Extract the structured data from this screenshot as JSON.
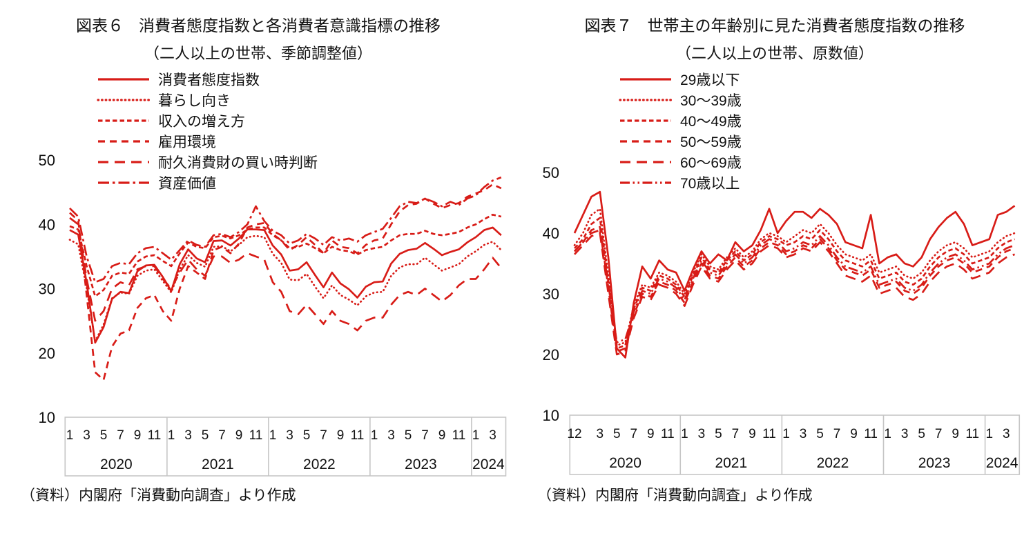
{
  "colors": {
    "line": "#d81c17",
    "axis_box": "#c6c6c6",
    "text": "#111111"
  },
  "chart_data": [
    {
      "type": "line",
      "fig_no": "図表６",
      "title": "消費者態度指数と各消費者意識指標の推移",
      "subtitle": "（二人以上の世帯、季節調整値）",
      "source": "（資料）内閣府「消費動向調査」より作成",
      "ylim": [
        10,
        50
      ],
      "y_ticks": [
        50,
        40,
        30,
        20,
        10
      ],
      "grid": false,
      "legend_position": "top-left-inside",
      "x_years": [
        {
          "label": "2020",
          "first_month": 1,
          "n_months": 12,
          "ticks": [
            "1",
            "3",
            "5",
            "7",
            "9",
            "11"
          ]
        },
        {
          "label": "2021",
          "first_month": 1,
          "n_months": 12,
          "ticks": [
            "1",
            "3",
            "5",
            "7",
            "9",
            "11"
          ]
        },
        {
          "label": "2022",
          "first_month": 1,
          "n_months": 12,
          "ticks": [
            "1",
            "3",
            "5",
            "7",
            "9",
            "11"
          ]
        },
        {
          "label": "2023",
          "first_month": 1,
          "n_months": 12,
          "ticks": [
            "1",
            "3",
            "5",
            "7",
            "9",
            "11"
          ]
        },
        {
          "label": "2024",
          "first_month": 1,
          "n_months": 4,
          "ticks": [
            "1",
            "3"
          ]
        }
      ],
      "series": [
        {
          "name": "消費者態度指数",
          "style": "solid",
          "values": [
            39.1,
            38.4,
            30.9,
            21.6,
            24.0,
            28.4,
            29.5,
            29.3,
            32.7,
            33.6,
            33.7,
            31.8,
            29.6,
            33.8,
            36.1,
            34.7,
            34.1,
            37.4,
            37.5,
            36.7,
            37.8,
            39.2,
            39.2,
            39.1,
            36.7,
            35.3,
            32.8,
            33.0,
            34.1,
            32.1,
            30.2,
            32.5,
            30.8,
            29.9,
            28.6,
            30.3,
            31.0,
            31.1,
            33.9,
            35.4,
            36.0,
            36.2,
            37.1,
            36.2,
            35.2,
            35.7,
            36.1,
            37.2,
            38.0,
            39.1,
            39.5,
            38.3
          ]
        },
        {
          "name": "暮らし向き",
          "style": "dotted",
          "values": [
            37.6,
            36.9,
            30.1,
            21.8,
            24.4,
            28.5,
            29.4,
            29.2,
            32.0,
            32.8,
            33.0,
            31.2,
            29.4,
            33.0,
            35.2,
            34.0,
            33.4,
            36.5,
            36.6,
            35.8,
            36.8,
            38.0,
            38.2,
            38.0,
            35.4,
            34.0,
            31.4,
            31.3,
            32.3,
            30.3,
            28.5,
            30.5,
            29.0,
            28.3,
            27.4,
            28.8,
            29.4,
            29.5,
            32.0,
            33.3,
            33.8,
            33.8,
            34.8,
            33.8,
            32.8,
            33.3,
            33.8,
            35.0,
            35.8,
            36.8,
            37.3,
            36.0
          ]
        },
        {
          "name": "収入の増え方",
          "style": "dash-fine",
          "values": [
            39.7,
            39.2,
            33.5,
            28.8,
            29.8,
            32.0,
            32.5,
            32.3,
            34.2,
            35.0,
            35.2,
            34.3,
            33.5,
            35.5,
            37.2,
            36.5,
            36.3,
            38.0,
            38.2,
            37.8,
            38.3,
            39.2,
            39.5,
            39.5,
            38.3,
            37.5,
            36.3,
            36.5,
            37.0,
            36.3,
            35.5,
            36.5,
            36.0,
            35.8,
            35.3,
            36.0,
            36.3,
            36.5,
            37.5,
            38.3,
            38.5,
            38.5,
            39.0,
            38.5,
            38.3,
            38.5,
            38.8,
            39.5,
            40.0,
            40.8,
            41.5,
            41.2
          ]
        },
        {
          "name": "雇用環境",
          "style": "dash",
          "values": [
            41.8,
            40.6,
            29.0,
            17.0,
            15.8,
            21.0,
            23.0,
            23.5,
            27.0,
            28.5,
            29.0,
            26.5,
            25.0,
            30.0,
            33.5,
            32.5,
            31.5,
            36.0,
            36.5,
            35.5,
            37.0,
            39.5,
            40.0,
            40.2,
            38.5,
            37.5,
            36.0,
            36.8,
            38.0,
            36.8,
            35.5,
            37.5,
            36.5,
            36.3,
            35.5,
            36.8,
            37.5,
            37.8,
            40.0,
            42.0,
            43.0,
            43.2,
            44.0,
            43.2,
            42.5,
            43.0,
            43.3,
            44.3,
            44.8,
            45.3,
            46.2,
            45.6
          ]
        },
        {
          "name": "耐久消費財の買い時判断",
          "style": "dash-long",
          "values": [
            41.0,
            40.0,
            31.5,
            25.0,
            26.5,
            30.0,
            31.0,
            30.5,
            33.0,
            33.5,
            33.5,
            31.5,
            30.0,
            32.5,
            34.5,
            33.0,
            32.0,
            35.0,
            35.0,
            34.0,
            34.5,
            35.5,
            35.0,
            34.5,
            31.0,
            29.5,
            26.5,
            26.0,
            27.5,
            26.0,
            24.5,
            26.5,
            25.0,
            24.5,
            23.5,
            25.0,
            25.5,
            25.5,
            27.5,
            29.0,
            29.5,
            29.0,
            30.0,
            29.0,
            28.0,
            29.0,
            30.5,
            31.5,
            31.5,
            33.0,
            34.8,
            33.2
          ]
        },
        {
          "name": "資産価値",
          "style": "dash-dot",
          "values": [
            42.5,
            41.2,
            35.0,
            31.0,
            31.5,
            33.5,
            34.0,
            33.8,
            35.5,
            36.3,
            36.5,
            35.5,
            34.5,
            36.0,
            37.5,
            36.8,
            36.5,
            38.3,
            38.5,
            38.0,
            38.8,
            40.0,
            42.8,
            40.5,
            39.0,
            38.3,
            37.0,
            37.5,
            38.5,
            37.8,
            36.8,
            38.0,
            37.5,
            37.8,
            37.3,
            38.3,
            38.8,
            39.3,
            41.0,
            42.8,
            43.5,
            43.3,
            44.0,
            43.5,
            42.8,
            43.5,
            43.0,
            44.0,
            44.5,
            45.8,
            46.8,
            47.3
          ]
        }
      ]
    },
    {
      "type": "line",
      "fig_no": "図表７",
      "title": "世帯主の年齢別に見た消費者態度指数の推移",
      "subtitle": "（二人以上の世帯、原数値）",
      "source": "（資料）内閣府「消費動向調査」より作成",
      "ylim": [
        10,
        50
      ],
      "y_ticks": [
        50,
        40,
        30,
        20,
        10
      ],
      "grid": false,
      "legend_position": "top-left-inside",
      "x_years": [
        {
          "label": "2020",
          "first_month": 12,
          "n_months": 13,
          "ticks": [
            "12",
            "3",
            "5",
            "7",
            "9",
            "11"
          ]
        },
        {
          "label": "2021",
          "first_month": 1,
          "n_months": 12,
          "ticks": [
            "1",
            "3",
            "5",
            "7",
            "9",
            "11"
          ]
        },
        {
          "label": "2022",
          "first_month": 1,
          "n_months": 12,
          "ticks": [
            "1",
            "3",
            "5",
            "7",
            "9",
            "11"
          ]
        },
        {
          "label": "2023",
          "first_month": 1,
          "n_months": 12,
          "ticks": [
            "1",
            "3",
            "5",
            "7",
            "9",
            "11"
          ]
        },
        {
          "label": "2024",
          "first_month": 1,
          "n_months": 4,
          "ticks": [
            "1",
            "3"
          ]
        }
      ],
      "series": [
        {
          "name": "29歳以下",
          "style": "solid",
          "values": [
            40.0,
            43.0,
            46.0,
            46.8,
            36.0,
            21.0,
            19.5,
            28.5,
            34.5,
            32.5,
            35.5,
            34.0,
            33.5,
            30.5,
            34.0,
            37.0,
            35.0,
            36.5,
            35.5,
            38.5,
            37.0,
            38.0,
            40.5,
            44.0,
            40.0,
            42.0,
            43.5,
            43.5,
            42.5,
            44.0,
            43.0,
            41.5,
            38.5,
            38.0,
            37.5,
            43.0,
            35.0,
            36.0,
            36.5,
            35.0,
            34.5,
            36.0,
            39.0,
            41.0,
            42.5,
            43.5,
            41.5,
            38.0,
            38.5,
            39.0,
            43.0,
            43.5,
            44.5
          ]
        },
        {
          "name": "30～39歳",
          "style": "dotted",
          "values": [
            38.0,
            40.0,
            43.0,
            44.0,
            33.0,
            21.5,
            22.0,
            28.0,
            31.5,
            31.0,
            33.5,
            33.0,
            32.0,
            30.0,
            33.5,
            36.5,
            34.5,
            34.0,
            36.0,
            37.5,
            36.0,
            37.0,
            39.0,
            40.0,
            39.5,
            38.5,
            39.5,
            40.5,
            40.0,
            41.5,
            40.0,
            38.0,
            36.5,
            36.0,
            35.5,
            36.5,
            33.5,
            34.0,
            34.5,
            33.0,
            32.5,
            33.5,
            35.5,
            37.0,
            38.0,
            38.5,
            37.5,
            36.0,
            36.5,
            37.0,
            38.5,
            39.5,
            40.0
          ]
        },
        {
          "name": "40～49歳",
          "style": "dash-fine",
          "values": [
            37.5,
            39.0,
            41.5,
            42.5,
            32.0,
            21.0,
            21.5,
            27.5,
            31.0,
            30.5,
            33.0,
            32.5,
            31.5,
            29.5,
            33.0,
            36.0,
            34.0,
            33.5,
            35.5,
            37.0,
            35.5,
            36.5,
            38.5,
            39.5,
            39.0,
            38.0,
            38.5,
            39.5,
            39.0,
            40.5,
            39.0,
            37.0,
            35.5,
            35.0,
            34.5,
            35.5,
            32.5,
            33.0,
            33.5,
            32.0,
            31.5,
            32.5,
            34.5,
            36.0,
            37.0,
            37.5,
            36.5,
            35.0,
            35.5,
            36.0,
            37.5,
            38.5,
            39.0
          ]
        },
        {
          "name": "50～59歳",
          "style": "dash",
          "values": [
            37.0,
            38.5,
            40.5,
            41.0,
            31.0,
            20.5,
            21.0,
            26.5,
            30.0,
            29.5,
            32.0,
            31.5,
            30.5,
            28.5,
            32.0,
            35.0,
            33.0,
            32.5,
            34.5,
            36.0,
            34.5,
            35.5,
            37.5,
            38.5,
            38.0,
            36.5,
            37.0,
            38.0,
            37.5,
            39.0,
            37.5,
            35.5,
            34.0,
            33.5,
            33.0,
            34.0,
            31.0,
            31.5,
            32.0,
            30.5,
            30.0,
            31.0,
            33.0,
            34.5,
            35.5,
            36.0,
            35.0,
            33.5,
            34.0,
            34.5,
            36.0,
            37.0,
            37.5
          ]
        },
        {
          "name": "60～69歳",
          "style": "dash-long",
          "values": [
            36.5,
            38.0,
            39.5,
            40.0,
            30.0,
            20.0,
            20.5,
            26.0,
            29.5,
            29.0,
            31.5,
            31.0,
            30.0,
            28.0,
            31.5,
            34.5,
            32.5,
            32.0,
            34.0,
            35.5,
            34.0,
            35.0,
            37.0,
            38.0,
            37.5,
            36.0,
            36.5,
            37.5,
            37.0,
            38.5,
            37.0,
            35.0,
            33.0,
            32.5,
            32.0,
            33.0,
            30.0,
            30.5,
            31.0,
            29.5,
            29.0,
            30.0,
            32.0,
            33.5,
            34.5,
            35.0,
            34.0,
            32.5,
            33.0,
            33.5,
            35.0,
            36.0,
            36.5
          ]
        },
        {
          "name": "70歳以上",
          "style": "dash-dot-dot",
          "values": [
            37.0,
            38.5,
            40.0,
            40.5,
            31.5,
            22.0,
            22.5,
            27.0,
            30.5,
            30.0,
            32.5,
            32.0,
            31.0,
            29.0,
            32.5,
            35.5,
            33.5,
            33.0,
            35.0,
            36.5,
            35.0,
            36.0,
            38.0,
            39.0,
            38.5,
            37.0,
            37.5,
            38.5,
            38.0,
            39.5,
            38.0,
            36.0,
            34.5,
            34.0,
            33.5,
            34.5,
            31.5,
            32.0,
            32.5,
            31.0,
            30.5,
            31.5,
            33.5,
            35.0,
            36.0,
            36.5,
            35.5,
            34.0,
            34.5,
            35.0,
            36.5,
            37.5,
            38.0
          ]
        }
      ]
    }
  ]
}
